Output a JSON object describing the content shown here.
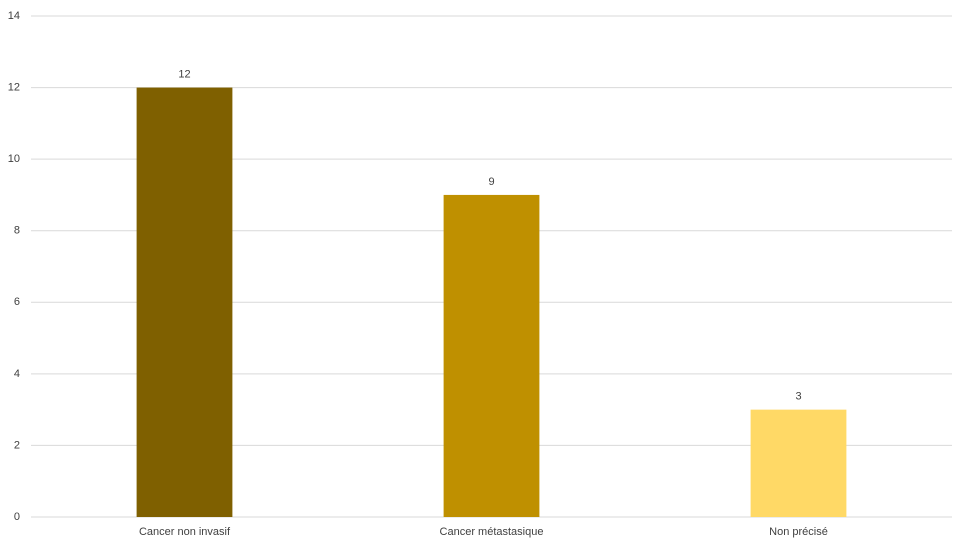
{
  "chart_data": {
    "type": "bar",
    "categories": [
      "Cancer non invasif",
      "Cancer métastasique",
      "Non précisé"
    ],
    "values": [
      12,
      9,
      3
    ],
    "colors": [
      "#7f6000",
      "#bf9000",
      "#ffd966"
    ],
    "ylim": [
      0,
      14
    ],
    "yticks": [
      0,
      2,
      4,
      6,
      8,
      10,
      12,
      14
    ],
    "grid": true
  }
}
